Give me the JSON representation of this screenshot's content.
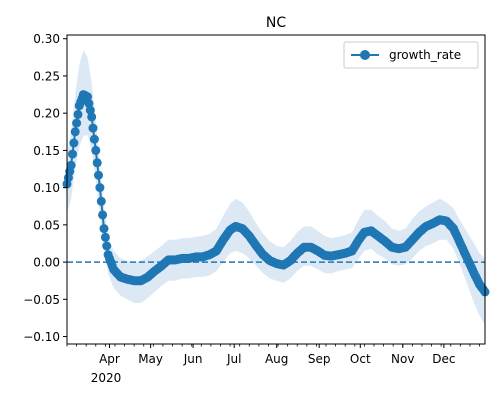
{
  "chart_data": {
    "type": "line",
    "title": "NC",
    "xlabel": "",
    "ylabel": "",
    "x_range": [
      "2020-03-01",
      "2020-12-31"
    ],
    "ylim": [
      -0.11,
      0.305
    ],
    "y_ticks": [
      -0.1,
      -0.05,
      0.0,
      0.05,
      0.1,
      0.15,
      0.2,
      0.25,
      0.3
    ],
    "y_tick_labels": [
      "−0.10",
      "−0.05",
      "0.00",
      "0.05",
      "0.10",
      "0.15",
      "0.20",
      "0.25",
      "0.30"
    ],
    "x_ticks": [
      {
        "date": "2020-04-01",
        "label": "Apr"
      },
      {
        "date": "2020-05-01",
        "label": "May"
      },
      {
        "date": "2020-06-01",
        "label": "Jun"
      },
      {
        "date": "2020-07-01",
        "label": "Jul"
      },
      {
        "date": "2020-08-01",
        "label": "Aug"
      },
      {
        "date": "2020-09-01",
        "label": "Sep"
      },
      {
        "date": "2020-10-01",
        "label": "Oct"
      },
      {
        "date": "2020-11-01",
        "label": "Nov"
      },
      {
        "date": "2020-12-01",
        "label": "Dec"
      }
    ],
    "x_year_label": "2020",
    "reference_line": {
      "y": 0.0,
      "style": "dashed",
      "color": "#1f77b4"
    },
    "legend": {
      "position": "top-right",
      "entries": [
        "growth_rate"
      ]
    },
    "grid": false,
    "series": [
      {
        "name": "growth_rate",
        "color": "#1f77b4",
        "band_color": "#dce9f5",
        "marker": "circle",
        "points": [
          [
            "2020-03-01",
            0.105,
            0.065,
            0.145
          ],
          [
            "2020-03-04",
            0.13,
            0.085,
            0.175
          ],
          [
            "2020-03-07",
            0.175,
            0.125,
            0.225
          ],
          [
            "2020-03-10",
            0.21,
            0.155,
            0.265
          ],
          [
            "2020-03-13",
            0.225,
            0.17,
            0.285
          ],
          [
            "2020-03-16",
            0.222,
            0.17,
            0.275
          ],
          [
            "2020-03-19",
            0.195,
            0.15,
            0.24
          ],
          [
            "2020-03-22",
            0.15,
            0.11,
            0.19
          ],
          [
            "2020-03-25",
            0.1,
            0.065,
            0.135
          ],
          [
            "2020-03-28",
            0.045,
            0.02,
            0.075
          ],
          [
            "2020-03-31",
            0.01,
            -0.015,
            0.035
          ],
          [
            "2020-04-04",
            -0.01,
            -0.035,
            0.015
          ],
          [
            "2020-04-09",
            -0.02,
            -0.045,
            0.005
          ],
          [
            "2020-04-14",
            -0.023,
            -0.05,
            0.002
          ],
          [
            "2020-04-19",
            -0.025,
            -0.055,
            0.0
          ],
          [
            "2020-04-24",
            -0.025,
            -0.055,
            0.002
          ],
          [
            "2020-04-29",
            -0.02,
            -0.048,
            0.008
          ],
          [
            "2020-05-04",
            -0.012,
            -0.04,
            0.015
          ],
          [
            "2020-05-09",
            -0.005,
            -0.032,
            0.022
          ],
          [
            "2020-05-14",
            0.003,
            -0.025,
            0.03
          ],
          [
            "2020-05-19",
            0.003,
            -0.025,
            0.03
          ],
          [
            "2020-05-24",
            0.005,
            -0.022,
            0.032
          ],
          [
            "2020-05-29",
            0.005,
            -0.022,
            0.032
          ],
          [
            "2020-06-03",
            0.007,
            -0.02,
            0.034
          ],
          [
            "2020-06-08",
            0.007,
            -0.02,
            0.035
          ],
          [
            "2020-06-13",
            0.01,
            -0.018,
            0.038
          ],
          [
            "2020-06-18",
            0.015,
            -0.012,
            0.045
          ],
          [
            "2020-06-23",
            0.03,
            0.0,
            0.062
          ],
          [
            "2020-06-28",
            0.043,
            0.012,
            0.078
          ],
          [
            "2020-07-02",
            0.048,
            0.015,
            0.085
          ],
          [
            "2020-07-07",
            0.045,
            0.012,
            0.08
          ],
          [
            "2020-07-12",
            0.035,
            0.005,
            0.068
          ],
          [
            "2020-07-17",
            0.022,
            -0.005,
            0.052
          ],
          [
            "2020-07-22",
            0.01,
            -0.015,
            0.038
          ],
          [
            "2020-07-27",
            0.002,
            -0.022,
            0.028
          ],
          [
            "2020-08-01",
            -0.002,
            -0.025,
            0.022
          ],
          [
            "2020-08-06",
            -0.004,
            -0.028,
            0.02
          ],
          [
            "2020-08-11",
            0.002,
            -0.022,
            0.028
          ],
          [
            "2020-08-16",
            0.012,
            -0.012,
            0.04
          ],
          [
            "2020-08-21",
            0.02,
            -0.005,
            0.048
          ],
          [
            "2020-08-26",
            0.02,
            -0.005,
            0.048
          ],
          [
            "2020-08-31",
            0.015,
            -0.01,
            0.042
          ],
          [
            "2020-09-05",
            0.009,
            -0.015,
            0.035
          ],
          [
            "2020-09-10",
            0.008,
            -0.015,
            0.032
          ],
          [
            "2020-09-15",
            0.01,
            -0.012,
            0.034
          ],
          [
            "2020-09-20",
            0.012,
            -0.01,
            0.036
          ],
          [
            "2020-09-25",
            0.015,
            -0.008,
            0.04
          ],
          [
            "2020-09-30",
            0.03,
            0.005,
            0.058
          ],
          [
            "2020-10-04",
            0.04,
            0.015,
            0.07
          ],
          [
            "2020-10-09",
            0.042,
            0.018,
            0.07
          ],
          [
            "2020-10-14",
            0.035,
            0.01,
            0.062
          ],
          [
            "2020-10-19",
            0.028,
            0.005,
            0.055
          ],
          [
            "2020-10-24",
            0.02,
            -0.003,
            0.045
          ],
          [
            "2020-10-29",
            0.018,
            -0.005,
            0.042
          ],
          [
            "2020-11-03",
            0.02,
            -0.003,
            0.045
          ],
          [
            "2020-11-08",
            0.03,
            0.005,
            0.058
          ],
          [
            "2020-11-13",
            0.04,
            0.015,
            0.068
          ],
          [
            "2020-11-18",
            0.048,
            0.022,
            0.075
          ],
          [
            "2020-11-23",
            0.052,
            0.025,
            0.08
          ],
          [
            "2020-11-28",
            0.057,
            0.03,
            0.085
          ],
          [
            "2020-12-03",
            0.055,
            0.03,
            0.08
          ],
          [
            "2020-12-08",
            0.045,
            0.018,
            0.072
          ],
          [
            "2020-12-13",
            0.025,
            -0.005,
            0.055
          ],
          [
            "2020-12-18",
            0.005,
            -0.03,
            0.04
          ],
          [
            "2020-12-23",
            -0.015,
            -0.055,
            0.025
          ],
          [
            "2020-12-27",
            -0.03,
            -0.072,
            0.012
          ],
          [
            "2020-12-31",
            -0.04,
            -0.085,
            0.005
          ]
        ]
      }
    ]
  }
}
